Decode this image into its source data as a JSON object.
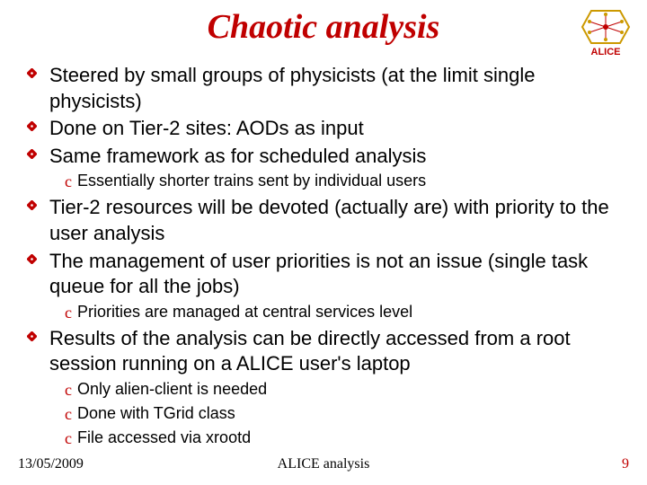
{
  "title": {
    "text": "Chaotic analysis",
    "color": "#c00000",
    "fontsize": 38
  },
  "logo": {
    "label": "ALICE",
    "label_color": "#c00000",
    "border_color": "#cc9900",
    "bg_color": "#ffffff"
  },
  "bullet_style": {
    "fill": "#c00000",
    "stroke": "#c00000",
    "size": 11
  },
  "sub_style": {
    "glyph": "c",
    "color": "#c00000",
    "fontsize": 18
  },
  "body": {
    "main_fontsize": 22,
    "sub_fontsize": 18,
    "color": "#000000"
  },
  "items": [
    {
      "type": "main",
      "text": "Steered by small groups of physicists (at the limit single physicists)"
    },
    {
      "type": "main",
      "text": "Done on Tier-2 sites:  AODs as input"
    },
    {
      "type": "main",
      "text": "Same framework as for scheduled analysis"
    },
    {
      "type": "sub",
      "text": "Essentially shorter trains sent by individual users"
    },
    {
      "type": "main",
      "text": "Tier-2 resources will be devoted (actually are) with priority to the user analysis"
    },
    {
      "type": "main",
      "text": "The management of user priorities is not an issue (single task queue for all the jobs)"
    },
    {
      "type": "sub",
      "text": "Priorities are managed at central services level"
    },
    {
      "type": "main",
      "text": "Results of the analysis can be directly accessed from a root session running on a ALICE user's laptop"
    },
    {
      "type": "sub",
      "text": "Only alien-client is needed"
    },
    {
      "type": "sub",
      "text": "Done with TGrid class"
    },
    {
      "type": "sub",
      "text": "File accessed via xrootd"
    }
  ],
  "footer": {
    "date": "13/05/2009",
    "center": "ALICE analysis",
    "page": "9",
    "fontsize": 16,
    "color": "#000000",
    "page_color": "#c00000"
  }
}
